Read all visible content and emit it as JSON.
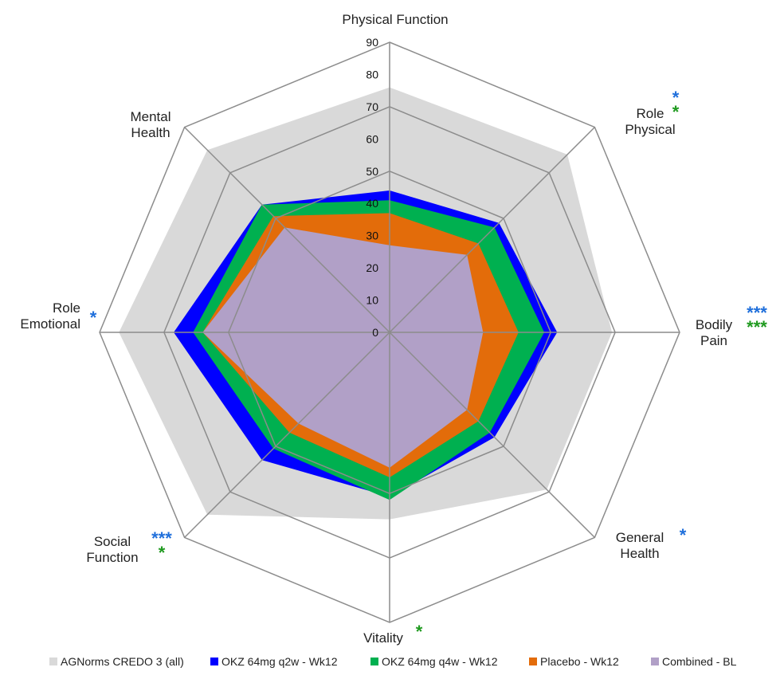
{
  "chart_data": {
    "type": "radar",
    "title": "",
    "axes": [
      "Physical Function",
      "Role Physical",
      "Bodily Pain",
      "General Health",
      "Vitality",
      "Social Function",
      "Role Emotional",
      "Mental Health"
    ],
    "axis_label_lines": [
      [
        "Physical Function"
      ],
      [
        "Role",
        "Physical"
      ],
      [
        "Bodily",
        "Pain"
      ],
      [
        "General",
        "Health"
      ],
      [
        "Vitality"
      ],
      [
        "Social",
        "Function"
      ],
      [
        "Role",
        "Emotional"
      ],
      [
        "Mental",
        "Health"
      ]
    ],
    "rlim": [
      0,
      90
    ],
    "ticks": [
      0,
      10,
      20,
      30,
      40,
      50,
      60,
      70,
      80,
      90
    ],
    "tick_labels": [
      "0",
      "10",
      "20",
      "30",
      "40",
      "50",
      "60",
      "70",
      "80",
      "90"
    ],
    "series": [
      {
        "name": "AGNorms CREDO 3 (all)",
        "color": "#d9d9d9",
        "values": [
          76,
          78,
          69,
          69,
          58,
          80,
          84,
          80
        ]
      },
      {
        "name": "OKZ 64mg q2w - Wk12",
        "color": "#0000ff",
        "values": [
          44,
          48,
          52,
          46,
          51,
          56,
          67,
          56
        ]
      },
      {
        "name": "OKZ 64mg q4w - Wk12",
        "color": "#00b050",
        "values": [
          41,
          46,
          48,
          44,
          52,
          51,
          61,
          56
        ]
      },
      {
        "name": "Placebo - Wk12",
        "color": "#e36c0a",
        "values": [
          37,
          39,
          40,
          39,
          45,
          44,
          58,
          51
        ]
      },
      {
        "name": "Combined - BL",
        "color": "#b1a0c7",
        "values": [
          27,
          34,
          29,
          34,
          42,
          40,
          58,
          46
        ]
      }
    ],
    "significance": [
      {
        "axis": "Role Physical",
        "rows": [
          {
            "text": "*",
            "color": "#1f6fdb"
          },
          {
            "text": "*",
            "color": "#1f9a1f"
          }
        ]
      },
      {
        "axis": "Bodily Pain",
        "rows": [
          {
            "text": "***",
            "color": "#1f6fdb"
          },
          {
            "text": "***",
            "color": "#1f9a1f"
          }
        ]
      },
      {
        "axis": "General Health",
        "rows": [
          {
            "text": "*",
            "color": "#1f6fdb"
          }
        ]
      },
      {
        "axis": "Vitality",
        "rows": [
          {
            "text": "*",
            "color": "#1f9a1f"
          }
        ]
      },
      {
        "axis": "Social Function",
        "rows": [
          {
            "text": "***",
            "color": "#1f6fdb"
          },
          {
            "text": "*",
            "color": "#1f9a1f"
          }
        ]
      },
      {
        "axis": "Role Emotional",
        "rows": [
          {
            "text": "*",
            "color": "#1f6fdb"
          }
        ]
      }
    ],
    "legend_position": "bottom"
  }
}
